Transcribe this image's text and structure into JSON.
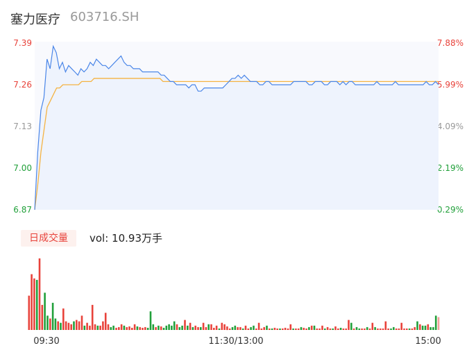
{
  "header": {
    "name": "塞力医疗",
    "code": "603716.SH"
  },
  "volume_panel": {
    "tab_label": "日成交量",
    "vol_text": "vol: 10.93万手"
  },
  "colors": {
    "price_line": "#4a86e8",
    "avg_line": "#f5b342",
    "up": "#e8423a",
    "down": "#21a03a",
    "neutral": "#999999"
  },
  "chart_data": [
    {
      "type": "line",
      "title": "",
      "x_ticks": [
        "09:30",
        "11:30/13:00",
        "15:00"
      ],
      "y_ticks_left": [
        "7.39",
        "7.26",
        "7.13",
        "7.00",
        "6.87"
      ],
      "y_ticks_right": [
        "7.88%",
        "5.99%",
        "4.09%",
        "2.19%",
        "0.29%"
      ],
      "ylim": [
        6.87,
        7.39
      ],
      "prev_close": 6.85,
      "series": [
        {
          "role": "price",
          "values": [
            6.87,
            7.05,
            7.18,
            7.22,
            7.34,
            7.31,
            7.38,
            7.36,
            7.31,
            7.33,
            7.3,
            7.32,
            7.31,
            7.3,
            7.29,
            7.31,
            7.3,
            7.31,
            7.33,
            7.32,
            7.34,
            7.33,
            7.32,
            7.32,
            7.31,
            7.32,
            7.33,
            7.34,
            7.35,
            7.33,
            7.32,
            7.32,
            7.31,
            7.31,
            7.31,
            7.3,
            7.3,
            7.3,
            7.3,
            7.3,
            7.3,
            7.29,
            7.29,
            7.28,
            7.27,
            7.27,
            7.26,
            7.26,
            7.26,
            7.26,
            7.25,
            7.26,
            7.26,
            7.24,
            7.24,
            7.25,
            7.25,
            7.25,
            7.25,
            7.25,
            7.25,
            7.25,
            7.26,
            7.27,
            7.28,
            7.28,
            7.29,
            7.28,
            7.29,
            7.28,
            7.27,
            7.27,
            7.27,
            7.26,
            7.26,
            7.27,
            7.27,
            7.26,
            7.26,
            7.26,
            7.26,
            7.26,
            7.26,
            7.26,
            7.27,
            7.27,
            7.27,
            7.27,
            7.27,
            7.26,
            7.26,
            7.27,
            7.27,
            7.27,
            7.26,
            7.26,
            7.27,
            7.27,
            7.27,
            7.26,
            7.27,
            7.26,
            7.27,
            7.27,
            7.26,
            7.26,
            7.26,
            7.26,
            7.26,
            7.26,
            7.26,
            7.27,
            7.26,
            7.26,
            7.26,
            7.26,
            7.26,
            7.27,
            7.26,
            7.26,
            7.26,
            7.26,
            7.26,
            7.26,
            7.26,
            7.26,
            7.26,
            7.27,
            7.26,
            7.26,
            7.27,
            7.26
          ]
        },
        {
          "role": "average",
          "values": [
            6.87,
            6.95,
            7.05,
            7.12,
            7.19,
            7.21,
            7.23,
            7.25,
            7.25,
            7.26,
            7.26,
            7.26,
            7.26,
            7.26,
            7.26,
            7.27,
            7.27,
            7.27,
            7.27,
            7.28,
            7.28,
            7.28,
            7.28,
            7.28,
            7.28,
            7.28,
            7.28,
            7.28,
            7.28,
            7.28,
            7.28,
            7.28,
            7.28,
            7.28,
            7.28,
            7.28,
            7.28,
            7.28,
            7.28,
            7.28,
            7.28,
            7.27,
            7.27,
            7.27,
            7.27,
            7.27,
            7.27,
            7.27,
            7.27,
            7.27,
            7.27,
            7.27,
            7.27,
            7.27,
            7.27,
            7.27,
            7.27,
            7.27,
            7.27,
            7.27,
            7.27,
            7.27,
            7.27,
            7.27,
            7.27,
            7.27,
            7.27,
            7.27,
            7.27,
            7.27,
            7.27,
            7.27,
            7.27,
            7.27,
            7.27,
            7.27,
            7.27,
            7.27,
            7.27,
            7.27,
            7.27,
            7.27,
            7.27,
            7.27,
            7.27,
            7.27,
            7.27,
            7.27,
            7.27,
            7.27,
            7.27,
            7.27,
            7.27,
            7.27,
            7.27,
            7.27,
            7.27,
            7.27,
            7.27,
            7.27,
            7.27,
            7.27,
            7.27,
            7.27,
            7.27,
            7.27,
            7.27,
            7.27,
            7.27,
            7.27,
            7.27,
            7.27,
            7.27,
            7.27,
            7.27,
            7.27,
            7.27,
            7.27,
            7.27,
            7.27,
            7.27,
            7.27,
            7.27,
            7.27,
            7.27,
            7.27,
            7.27,
            7.27,
            7.27,
            7.27
          ]
        }
      ]
    },
    {
      "type": "bar",
      "title": "",
      "x_ticks": [
        "09:30",
        "11:30/13:00",
        "15:00"
      ],
      "bars": [
        [
          48,
          "up"
        ],
        [
          78,
          "up"
        ],
        [
          72,
          "up"
        ],
        [
          70,
          "down"
        ],
        [
          100,
          "up"
        ],
        [
          35,
          "up"
        ],
        [
          52,
          "down"
        ],
        [
          20,
          "down"
        ],
        [
          16,
          "up"
        ],
        [
          38,
          "down"
        ],
        [
          16,
          "down"
        ],
        [
          12,
          "up"
        ],
        [
          10,
          "down"
        ],
        [
          30,
          "up"
        ],
        [
          12,
          "up"
        ],
        [
          10,
          "up"
        ],
        [
          8,
          "up"
        ],
        [
          12,
          "down"
        ],
        [
          14,
          "up"
        ],
        [
          12,
          "up"
        ],
        [
          20,
          "up"
        ],
        [
          6,
          "down"
        ],
        [
          10,
          "up"
        ],
        [
          6,
          "up"
        ],
        [
          35,
          "up"
        ],
        [
          8,
          "up"
        ],
        [
          6,
          "down"
        ],
        [
          6,
          "up"
        ],
        [
          12,
          "up"
        ],
        [
          24,
          "up"
        ],
        [
          8,
          "up"
        ],
        [
          4,
          "down"
        ],
        [
          6,
          "down"
        ],
        [
          3,
          "up"
        ],
        [
          4,
          "up"
        ],
        [
          8,
          "up"
        ],
        [
          6,
          "down"
        ],
        [
          4,
          "up"
        ],
        [
          5,
          "up"
        ],
        [
          3,
          "up"
        ],
        [
          8,
          "up"
        ],
        [
          5,
          "down"
        ],
        [
          4,
          "up"
        ],
        [
          3,
          "up"
        ],
        [
          4,
          "up"
        ],
        [
          3,
          "down"
        ],
        [
          26,
          "down"
        ],
        [
          8,
          "down"
        ],
        [
          4,
          "up"
        ],
        [
          6,
          "down"
        ],
        [
          5,
          "up"
        ],
        [
          3,
          "down"
        ],
        [
          6,
          "down"
        ],
        [
          8,
          "down"
        ],
        [
          6,
          "down"
        ],
        [
          12,
          "down"
        ],
        [
          8,
          "up"
        ],
        [
          4,
          "down"
        ],
        [
          6,
          "down"
        ],
        [
          14,
          "up"
        ],
        [
          6,
          "down"
        ],
        [
          10,
          "up"
        ],
        [
          4,
          "down"
        ],
        [
          6,
          "up"
        ],
        [
          4,
          "up"
        ],
        [
          4,
          "down"
        ],
        [
          10,
          "up"
        ],
        [
          4,
          "up"
        ],
        [
          8,
          "down"
        ],
        [
          8,
          "up"
        ],
        [
          3,
          "up"
        ],
        [
          6,
          "up"
        ],
        [
          2,
          "down"
        ],
        [
          10,
          "up"
        ],
        [
          8,
          "up"
        ],
        [
          5,
          "up"
        ],
        [
          2,
          "up"
        ],
        [
          4,
          "down"
        ],
        [
          6,
          "down"
        ],
        [
          4,
          "up"
        ],
        [
          4,
          "up"
        ],
        [
          2,
          "down"
        ],
        [
          6,
          "up"
        ],
        [
          2,
          "up"
        ],
        [
          4,
          "down"
        ],
        [
          6,
          "down"
        ],
        [
          2,
          "up"
        ],
        [
          10,
          "up"
        ],
        [
          2,
          "up"
        ],
        [
          4,
          "up"
        ],
        [
          6,
          "down"
        ],
        [
          2,
          "up"
        ],
        [
          2,
          "down"
        ],
        [
          3,
          "up"
        ],
        [
          2,
          "up"
        ],
        [
          2,
          "down"
        ],
        [
          2,
          "up"
        ],
        [
          3,
          "up"
        ],
        [
          2,
          "up"
        ],
        [
          8,
          "up"
        ],
        [
          2,
          "down"
        ],
        [
          2,
          "up"
        ],
        [
          2,
          "up"
        ],
        [
          4,
          "down"
        ],
        [
          3,
          "up"
        ],
        [
          2,
          "up"
        ],
        [
          4,
          "down"
        ],
        [
          6,
          "up"
        ],
        [
          6,
          "down"
        ],
        [
          2,
          "up"
        ],
        [
          2,
          "up"
        ],
        [
          6,
          "up"
        ],
        [
          2,
          "down"
        ],
        [
          4,
          "up"
        ],
        [
          2,
          "up"
        ],
        [
          2,
          "down"
        ],
        [
          5,
          "up"
        ],
        [
          2,
          "up"
        ],
        [
          3,
          "down"
        ],
        [
          2,
          "up"
        ],
        [
          2,
          "up"
        ],
        [
          14,
          "up"
        ],
        [
          10,
          "down"
        ],
        [
          2,
          "up"
        ],
        [
          4,
          "down"
        ],
        [
          2,
          "down"
        ],
        [
          2,
          "up"
        ],
        [
          2,
          "up"
        ],
        [
          4,
          "down"
        ],
        [
          2,
          "up"
        ],
        [
          10,
          "up"
        ],
        [
          4,
          "down"
        ],
        [
          2,
          "up"
        ],
        [
          2,
          "up"
        ],
        [
          2,
          "up"
        ],
        [
          12,
          "up"
        ],
        [
          2,
          "up"
        ],
        [
          2,
          "down"
        ],
        [
          4,
          "down"
        ],
        [
          2,
          "up"
        ],
        [
          2,
          "up"
        ],
        [
          10,
          "up"
        ],
        [
          2,
          "up"
        ],
        [
          2,
          "up"
        ],
        [
          2,
          "down"
        ],
        [
          2,
          "up"
        ],
        [
          4,
          "up"
        ],
        [
          12,
          "down"
        ],
        [
          8,
          "up"
        ],
        [
          6,
          "down"
        ],
        [
          6,
          "down"
        ],
        [
          8,
          "up"
        ],
        [
          4,
          "down"
        ],
        [
          4,
          "down"
        ],
        [
          20,
          "down"
        ],
        [
          18,
          "neutral"
        ]
      ]
    }
  ]
}
